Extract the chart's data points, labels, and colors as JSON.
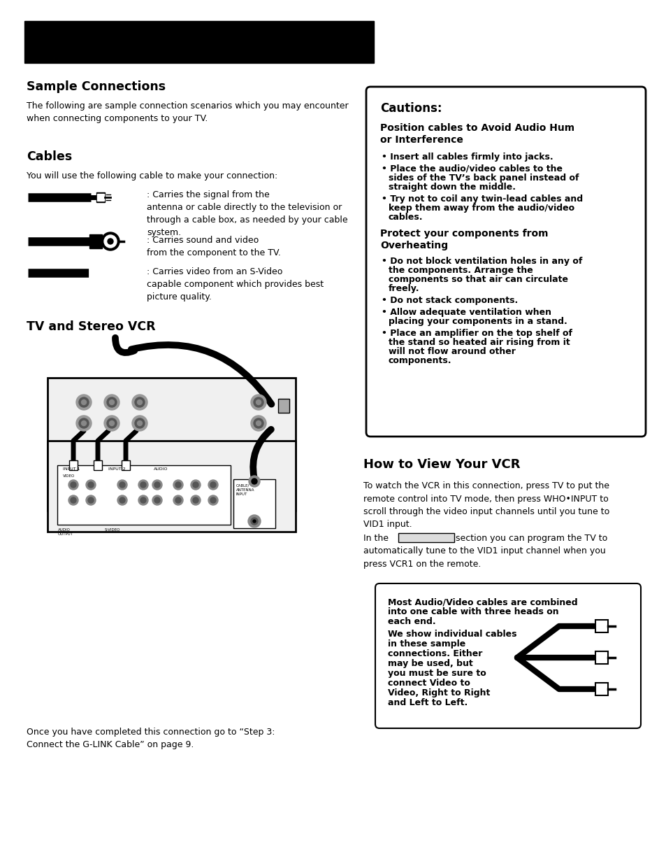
{
  "bg_color": "#ffffff",
  "section1_title": "Sample Connections",
  "section1_body": "The following are sample connection scenarios which you may encounter\nwhen connecting components to your TV.",
  "section2_title": "Cables",
  "section2_body": "You will use the following cable to make your connection:",
  "cable1_desc": ": Carries the signal from the\nantenna or cable directly to the television or\nthrough a cable box, as needed by your cable\nsystem.",
  "cable2_desc": ": Carries sound and video\nfrom the component to the TV.",
  "cable3_desc": ": Carries video from an S-Video\ncapable component which provides best\npicture quality.",
  "section3_title": "TV and Stereo VCR",
  "caution_title": "Cautions:",
  "caution_sub1": "Position cables to Avoid Audio Hum\nor Interference",
  "caution_bullets1": [
    "Insert all cables firmly into jacks.",
    "Place the audio/video cables to the\nsides of the TV’s back panel instead of\nstraight down the middle.",
    "Try not to coil any twin-lead cables and\nkeep them away from the audio/video\ncables."
  ],
  "caution_sub2": "Protect your components from\nOverheating",
  "caution_bullets2": [
    "Do not block ventilation holes in any of\nthe components. Arrange the\ncomponents so that air can circulate\nfreely.",
    "Do not stack components.",
    "Allow adequate ventilation when\nplacing your components in a stand.",
    "Place an amplifier on the top shelf of\nthe stand so heated air rising from it\nwill not flow around other\ncomponents."
  ],
  "vcr_title": "How to View Your VCR",
  "vcr_body1": "To watch the VCR in this connection, press TV to put the\nremote control into TV mode, then press WHO•INPUT to\nscroll through the video input channels until you tune to\nVID1 input.",
  "vcr_body2_pre": "In the",
  "vcr_body2_post": "section you can program the TV to\nautomatically tune to the VID1 input channel when you\npress VCR1 on the remote.",
  "vcr_note_bold": "Most Audio/Video cables are combined\ninto one cable with three heads on\neach end.",
  "vcr_note_rest": "We show individual cables\nin these sample\nconnections. Either\nmay be used, but\nyou must be sure to\nconnect Video to\nVideo, Right to Right\nand Left to Left.",
  "footer_text": "Once you have completed this connection go to “Step 3:\nConnect the G-LINK Cable” on page 9."
}
